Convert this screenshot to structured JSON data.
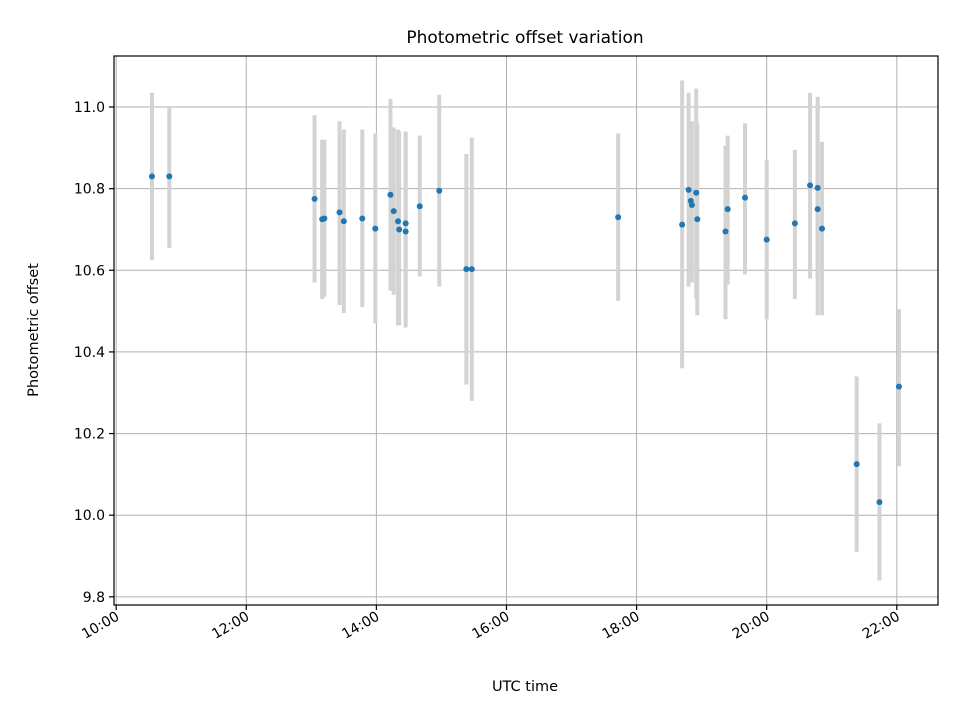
{
  "chart_data": {
    "type": "scatter",
    "title": "Photometric offset variation",
    "xlabel": "UTC time",
    "ylabel": "Photometric offset",
    "xlim": [
      "09:58",
      "22:38"
    ],
    "ylim": [
      9.78,
      11.125
    ],
    "x_ticks": [
      "10:00",
      "12:00",
      "14:00",
      "16:00",
      "18:00",
      "20:00",
      "22:00"
    ],
    "y_ticks": [
      "9.8",
      "10.0",
      "10.2",
      "10.4",
      "10.6",
      "10.8",
      "11.0"
    ],
    "grid": true,
    "marker_color": "#1f77b4",
    "errorbar_color": "#d3d3d3",
    "points": [
      {
        "t": "10:33",
        "y": 10.83,
        "lo": 10.625,
        "hi": 11.035
      },
      {
        "t": "10:49",
        "y": 10.83,
        "lo": 10.655,
        "hi": 11.0
      },
      {
        "t": "13:03",
        "y": 10.775,
        "lo": 10.57,
        "hi": 10.98
      },
      {
        "t": "13:10",
        "y": 10.725,
        "lo": 10.53,
        "hi": 10.92
      },
      {
        "t": "13:12",
        "y": 10.727,
        "lo": 10.535,
        "hi": 10.92
      },
      {
        "t": "13:26",
        "y": 10.742,
        "lo": 10.515,
        "hi": 10.965
      },
      {
        "t": "13:30",
        "y": 10.72,
        "lo": 10.495,
        "hi": 10.945
      },
      {
        "t": "13:47",
        "y": 10.727,
        "lo": 10.51,
        "hi": 10.945
      },
      {
        "t": "13:59",
        "y": 10.702,
        "lo": 10.47,
        "hi": 10.935
      },
      {
        "t": "14:13",
        "y": 10.785,
        "lo": 10.55,
        "hi": 11.02
      },
      {
        "t": "14:16",
        "y": 10.745,
        "lo": 10.54,
        "hi": 10.95
      },
      {
        "t": "14:20",
        "y": 10.72,
        "lo": 10.465,
        "hi": 10.945
      },
      {
        "t": "14:21",
        "y": 10.7,
        "lo": 10.465,
        "hi": 10.94
      },
      {
        "t": "14:27",
        "y": 10.715,
        "lo": 10.49,
        "hi": 10.94
      },
      {
        "t": "14:27",
        "y": 10.695,
        "lo": 10.46,
        "hi": 10.93
      },
      {
        "t": "14:40",
        "y": 10.757,
        "lo": 10.585,
        "hi": 10.93
      },
      {
        "t": "14:58",
        "y": 10.795,
        "lo": 10.56,
        "hi": 11.03
      },
      {
        "t": "15:23",
        "y": 10.603,
        "lo": 10.32,
        "hi": 10.885
      },
      {
        "t": "15:28",
        "y": 10.603,
        "lo": 10.28,
        "hi": 10.925
      },
      {
        "t": "17:43",
        "y": 10.73,
        "lo": 10.525,
        "hi": 10.935
      },
      {
        "t": "18:42",
        "y": 10.712,
        "lo": 10.36,
        "hi": 11.065
      },
      {
        "t": "18:48",
        "y": 10.797,
        "lo": 10.56,
        "hi": 11.035
      },
      {
        "t": "18:50",
        "y": 10.77,
        "lo": 10.57,
        "hi": 10.965
      },
      {
        "t": "18:51",
        "y": 10.76,
        "lo": 10.57,
        "hi": 10.965
      },
      {
        "t": "18:55",
        "y": 10.79,
        "lo": 10.53,
        "hi": 11.045
      },
      {
        "t": "18:56",
        "y": 10.725,
        "lo": 10.49,
        "hi": 10.96
      },
      {
        "t": "19:22",
        "y": 10.695,
        "lo": 10.48,
        "hi": 10.905
      },
      {
        "t": "19:24",
        "y": 10.75,
        "lo": 10.565,
        "hi": 10.93
      },
      {
        "t": "19:40",
        "y": 10.778,
        "lo": 10.59,
        "hi": 10.96
      },
      {
        "t": "20:00",
        "y": 10.675,
        "lo": 10.48,
        "hi": 10.87
      },
      {
        "t": "20:26",
        "y": 10.715,
        "lo": 10.53,
        "hi": 10.895
      },
      {
        "t": "20:40",
        "y": 10.808,
        "lo": 10.58,
        "hi": 11.035
      },
      {
        "t": "20:47",
        "y": 10.802,
        "lo": 10.58,
        "hi": 11.025
      },
      {
        "t": "20:47",
        "y": 10.75,
        "lo": 10.49,
        "hi": 11.01
      },
      {
        "t": "20:51",
        "y": 10.702,
        "lo": 10.49,
        "hi": 10.915
      },
      {
        "t": "21:23",
        "y": 10.125,
        "lo": 9.91,
        "hi": 10.34
      },
      {
        "t": "21:44",
        "y": 10.032,
        "lo": 9.84,
        "hi": 10.225
      },
      {
        "t": "22:02",
        "y": 10.315,
        "lo": 10.12,
        "hi": 10.505
      }
    ]
  }
}
